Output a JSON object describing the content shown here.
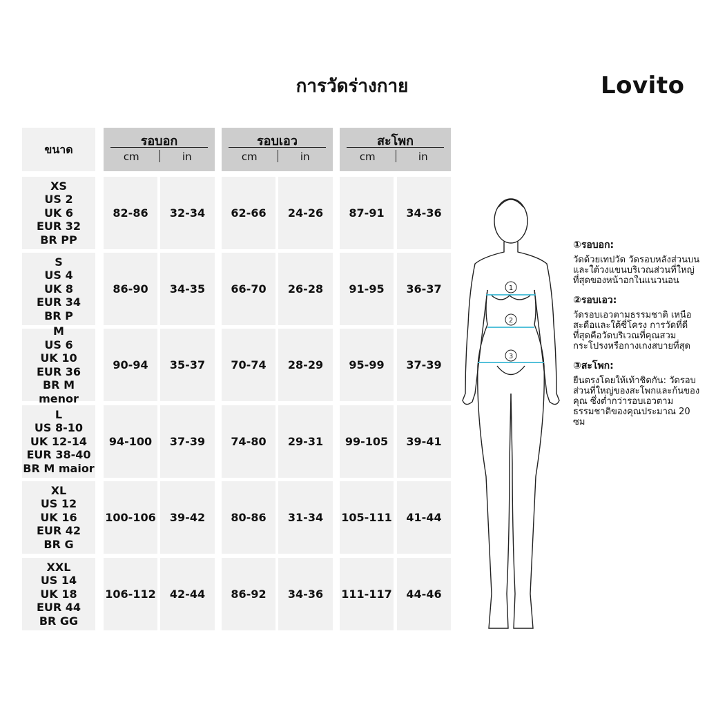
{
  "title": "การวัดร่างกาย",
  "brand": "Lovito",
  "header": {
    "size": "ขนาด",
    "bust": "รอบอก",
    "waist": "รอบเอว",
    "hip": "สะโพก",
    "cm": "cm",
    "in": "in"
  },
  "rows": [
    {
      "size": "XS\nUS 2\nUK 6\nEUR 32\nBR PP",
      "bust_cm": "82-86",
      "bust_in": "32-34",
      "waist_cm": "62-66",
      "waist_in": "24-26",
      "hip_cm": "87-91",
      "hip_in": "34-36"
    },
    {
      "size": "S\nUS 4\nUK 8\nEUR 34\nBR P",
      "bust_cm": "86-90",
      "bust_in": "34-35",
      "waist_cm": "66-70",
      "waist_in": "26-28",
      "hip_cm": "91-95",
      "hip_in": "36-37"
    },
    {
      "size": "M\nUS 6\nUK 10\nEUR 36\nBR M menor",
      "bust_cm": "90-94",
      "bust_in": "35-37",
      "waist_cm": "70-74",
      "waist_in": "28-29",
      "hip_cm": "95-99",
      "hip_in": "37-39"
    },
    {
      "size": "L\nUS 8-10\nUK 12-14\nEUR 38-40\nBR M maior",
      "bust_cm": "94-100",
      "bust_in": "37-39",
      "waist_cm": "74-80",
      "waist_in": "29-31",
      "hip_cm": "99-105",
      "hip_in": "39-41"
    },
    {
      "size": "XL\nUS 12\nUK 16\nEUR 42\nBR G",
      "bust_cm": "100-106",
      "bust_in": "39-42",
      "waist_cm": "80-86",
      "waist_in": "31-34",
      "hip_cm": "105-111",
      "hip_in": "41-44"
    },
    {
      "size": "XXL\nUS 14\nUK 18\nEUR 44\nBR GG",
      "bust_cm": "106-112",
      "bust_in": "42-44",
      "waist_cm": "86-92",
      "waist_in": "34-36",
      "hip_cm": "111-117",
      "hip_in": "44-46"
    }
  ],
  "figure": {
    "markers": [
      "1",
      "2",
      "3"
    ],
    "line_color": "#3bb8d4"
  },
  "notes": [
    {
      "title": "①รอบอก:",
      "text": "วัดด้วยเทปวัด วัดรอบหลังส่วนบนและใต้วงแขนบริเวณส่วนที่ใหญ่ที่สุดของหน้าอกในแนวนอน"
    },
    {
      "title": "②รอบเอว:",
      "text": "วัดรอบเอวตามธรรมชาติ เหนือสะดือและใต้ซี่โครง การวัดที่ดีที่สุดคือวัดบริเวณที่คุณสวมกระโปรงหรือกางเกงสบายที่สุด"
    },
    {
      "title": "③สะโพก:",
      "text": "ยืนตรงโดยให้เท้าชิดกัน: วัดรอบส่วนที่ใหญ่ของสะโพกและก้นของคุณ ซึ่งต่ำกว่ารอบเอวตามธรรมชาติของคุณประมาณ 20 ซม"
    }
  ]
}
